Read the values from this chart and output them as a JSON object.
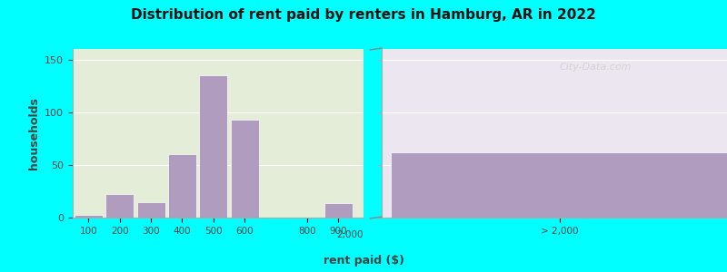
{
  "title": "Distribution of rent paid by renters in Hamburg, AR in 2022",
  "xlabel": "rent paid ($)",
  "ylabel": "households",
  "bar_color": "#b09cbe",
  "bg_color_left": "#e4edd8",
  "bg_color_right": "#ece6f0",
  "outer_bg": "#00ffff",
  "bars": [
    {
      "label": "100",
      "x": 100,
      "value": 3
    },
    {
      "label": "200",
      "x": 200,
      "value": 22
    },
    {
      "label": "300",
      "x": 300,
      "value": 15
    },
    {
      "label": "400",
      "x": 400,
      "value": 60
    },
    {
      "label": "500",
      "x": 500,
      "value": 135
    },
    {
      "label": "600",
      "x": 600,
      "value": 93
    },
    {
      "label": "800",
      "x": 800,
      "value": 0
    },
    {
      "label": "900",
      "x": 900,
      "value": 14
    }
  ],
  "special_bar": {
    "label": "> 2,000",
    "value": 62
  },
  "ylim": [
    0,
    160
  ],
  "yticks": [
    0,
    50,
    100,
    150
  ],
  "watermark": "City-Data.com",
  "grid_color": "#ffffff",
  "spine_color": "#aaaaaa"
}
